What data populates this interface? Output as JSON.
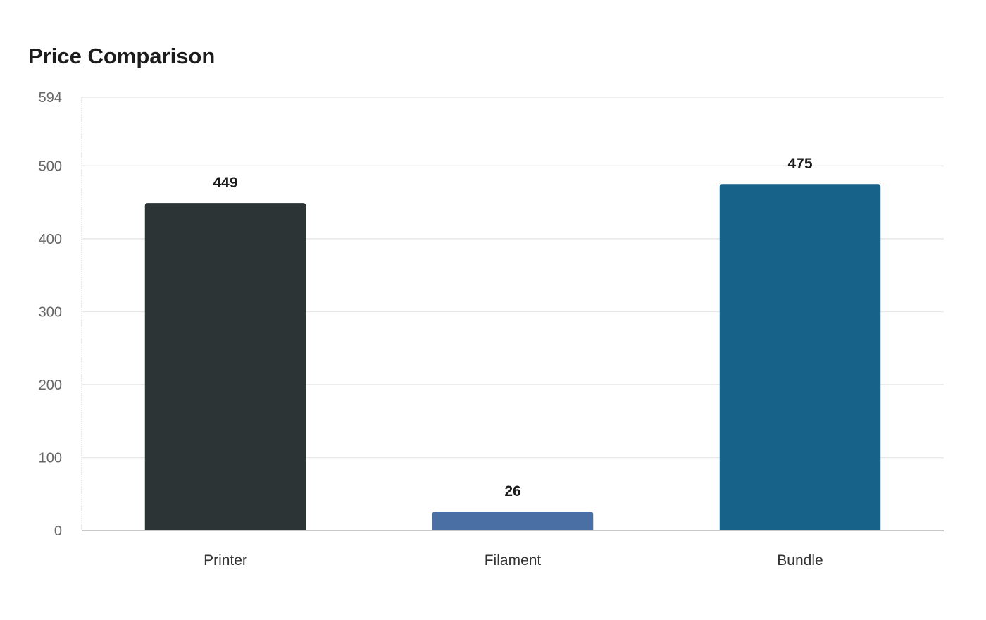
{
  "chart_data": {
    "type": "bar",
    "title": "Price Comparison",
    "xlabel": "",
    "ylabel": "",
    "categories": [
      "Printer",
      "Filament",
      "Bundle"
    ],
    "values": [
      449,
      26,
      475
    ],
    "ylim": [
      0,
      594
    ],
    "yticks": [
      0,
      100,
      200,
      300,
      400,
      500,
      594
    ],
    "bar_colors": [
      "#2d3436",
      "#4a6fa5",
      "#176289"
    ],
    "data_labels": true,
    "grid": true,
    "legend": "none"
  }
}
